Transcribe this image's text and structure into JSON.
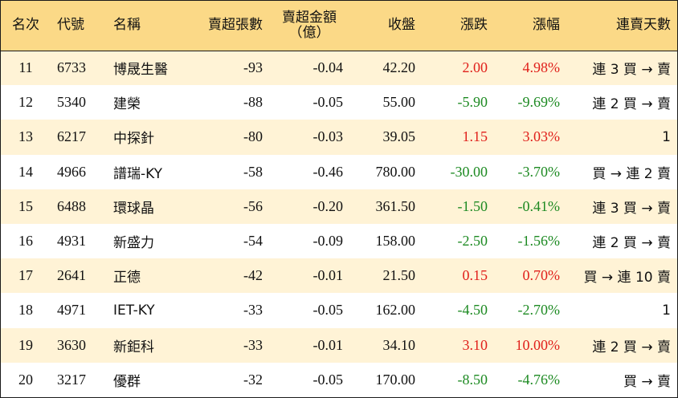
{
  "headers": {
    "rank": "名次",
    "code": "代號",
    "name": "名稱",
    "net_lots": "賣超張數",
    "net_amount_l1": "賣超金額",
    "net_amount_l2": "（億）",
    "close": "收盤",
    "change": "漲跌",
    "pct": "漲幅",
    "streak": "連賣天數"
  },
  "colors": {
    "header_bg": "#fbd987",
    "odd_row_bg": "#fff3d6",
    "up": "#e0201b",
    "down": "#1d8a22"
  },
  "rows": [
    {
      "rank": "11",
      "code": "6733",
      "name": "博晟生醫",
      "lots": "-93",
      "amount": "-0.04",
      "close": "42.20",
      "change": "2.00",
      "pct": "4.98%",
      "dir": "up",
      "streak": "連 3 買 → 賣"
    },
    {
      "rank": "12",
      "code": "5340",
      "name": "建榮",
      "lots": "-88",
      "amount": "-0.05",
      "close": "55.00",
      "change": "-5.90",
      "pct": "-9.69%",
      "dir": "down",
      "streak": "連 2 買 → 賣"
    },
    {
      "rank": "13",
      "code": "6217",
      "name": "中探針",
      "lots": "-80",
      "amount": "-0.03",
      "close": "39.05",
      "change": "1.15",
      "pct": "3.03%",
      "dir": "up",
      "streak": "1"
    },
    {
      "rank": "14",
      "code": "4966",
      "name": "譜瑞-KY",
      "lots": "-58",
      "amount": "-0.46",
      "close": "780.00",
      "change": "-30.00",
      "pct": "-3.70%",
      "dir": "down",
      "streak": "買 → 連 2 賣"
    },
    {
      "rank": "15",
      "code": "6488",
      "name": "環球晶",
      "lots": "-56",
      "amount": "-0.20",
      "close": "361.50",
      "change": "-1.50",
      "pct": "-0.41%",
      "dir": "down",
      "streak": "連 3 買 → 賣"
    },
    {
      "rank": "16",
      "code": "4931",
      "name": "新盛力",
      "lots": "-54",
      "amount": "-0.09",
      "close": "158.00",
      "change": "-2.50",
      "pct": "-1.56%",
      "dir": "down",
      "streak": "連 2 買 → 賣"
    },
    {
      "rank": "17",
      "code": "2641",
      "name": "正德",
      "lots": "-42",
      "amount": "-0.01",
      "close": "21.50",
      "change": "0.15",
      "pct": "0.70%",
      "dir": "up",
      "streak": "買 → 連 10 賣"
    },
    {
      "rank": "18",
      "code": "4971",
      "name": "IET-KY",
      "lots": "-33",
      "amount": "-0.05",
      "close": "162.00",
      "change": "-4.50",
      "pct": "-2.70%",
      "dir": "down",
      "streak": "1"
    },
    {
      "rank": "19",
      "code": "3630",
      "name": "新鉅科",
      "lots": "-33",
      "amount": "-0.01",
      "close": "34.10",
      "change": "3.10",
      "pct": "10.00%",
      "dir": "up",
      "streak": "連 2 買 → 賣"
    },
    {
      "rank": "20",
      "code": "3217",
      "name": "優群",
      "lots": "-32",
      "amount": "-0.05",
      "close": "170.00",
      "change": "-8.50",
      "pct": "-4.76%",
      "dir": "down",
      "streak": "買 → 賣"
    }
  ]
}
